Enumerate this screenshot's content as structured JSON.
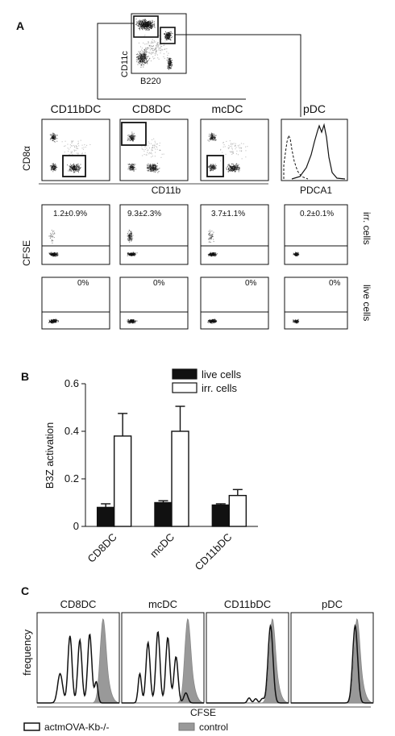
{
  "panel_a": {
    "letter": "A",
    "top_plot": {
      "ylabel": "CD11c",
      "xlabel": "B220"
    },
    "columns": [
      {
        "name": "CD11bDC",
        "irr_pct": "1.2±0.9%",
        "live_pct": "0%"
      },
      {
        "name": "CD8DC",
        "irr_pct": "9.3±2.3%",
        "live_pct": "0%"
      },
      {
        "name": "mcDC",
        "irr_pct": "3.7±1.1%",
        "live_pct": "0%"
      },
      {
        "name": "pDC",
        "irr_pct": "0.2±0.1%",
        "live_pct": "0%"
      }
    ],
    "row1_ylabel": "CD8α",
    "row1_xlabel": "CD11b",
    "pdc_xlabel": "PDCA1",
    "cfse_label": "CFSE",
    "row_labels": {
      "irr": "irr. cells",
      "live": "live cells"
    }
  },
  "panel_b": {
    "letter": "B"
  },
  "panel_c": {
    "letter": "C",
    "titles": [
      "CD8DC",
      "mcDC",
      "CD11bDC",
      "pDC"
    ],
    "ylabel": "frequency",
    "xlabel": "CFSE",
    "legend": [
      {
        "name": "actmOVA-Kb-/-",
        "color": "#ffffff"
      },
      {
        "name": "control",
        "color": "#999999"
      }
    ]
  },
  "chart_data": [
    {
      "type": "bar",
      "categories": [
        "CD8DC",
        "mcDC",
        "CD11bDC"
      ],
      "series": [
        {
          "name": "live cells",
          "color": "#111111",
          "values": [
            0.08,
            0.1,
            0.09
          ],
          "errors": [
            0.015,
            0.008,
            0.005
          ]
        },
        {
          "name": "irr. cells",
          "color": "#ffffff",
          "values": [
            0.38,
            0.4,
            0.13
          ],
          "errors": [
            0.095,
            0.105,
            0.025
          ]
        }
      ],
      "xlabel": "",
      "ylabel": "B3Z activation",
      "ylim": [
        0,
        0.6
      ],
      "yticks": [
        "0",
        "0.2",
        "0.4",
        "0.6"
      ],
      "grid": false,
      "legend_position": "top"
    },
    {
      "type": "line",
      "series": [
        {
          "name": "actmOVA-Kb-/-",
          "peaks": [
            0.2,
            0.32,
            0.44,
            0.58
          ],
          "peak_heights": [
            0.3,
            0.75,
            0.72,
            0.8
          ]
        },
        {
          "name": "control",
          "peaks": [
            0.75
          ],
          "peak_heights": [
            0.68
          ]
        }
      ]
    }
  ]
}
